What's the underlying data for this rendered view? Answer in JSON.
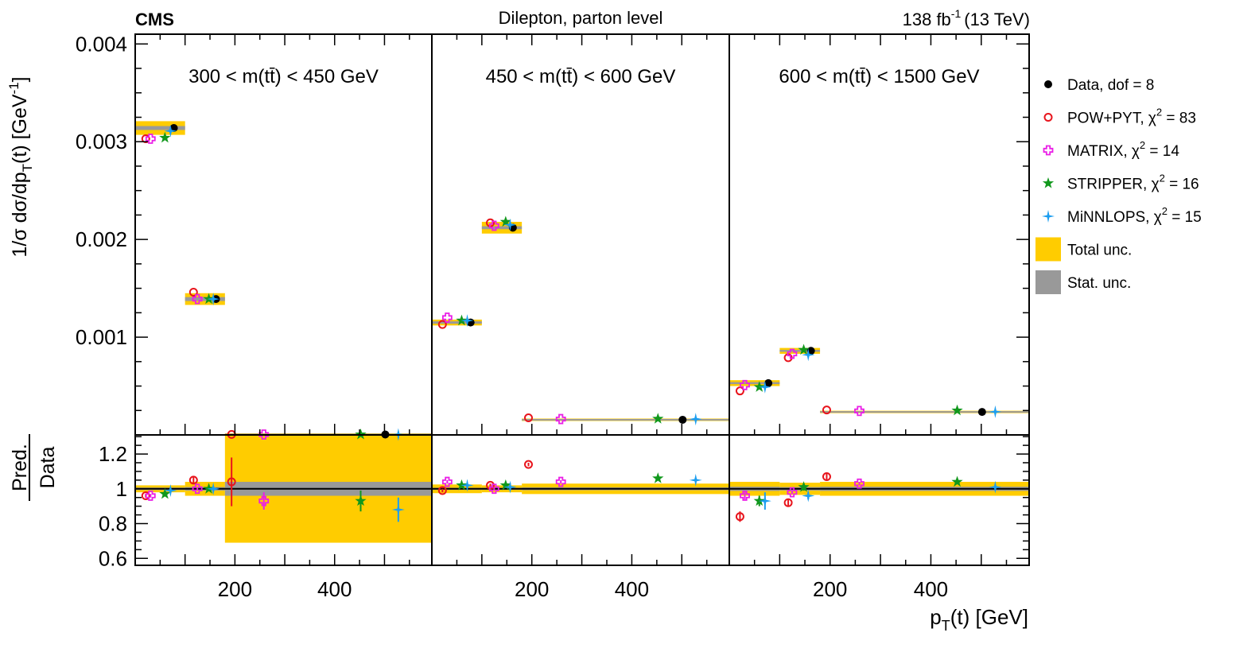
{
  "header": {
    "experiment": "CMS",
    "subtitle": "Dilepton, parton level",
    "lumi_main": "138 fb",
    "lumi_sup": "-1",
    "lumi_energy": "(13 TeV)"
  },
  "y_label": {
    "pre": "1/σ dσ/dp",
    "sub": "T",
    "mid": "(t) [GeV",
    "sup": "-1",
    "post": "]"
  },
  "ratio_label": {
    "num": "Pred.",
    "den": "Data"
  },
  "x_label": {
    "pre": "p",
    "sub": "T",
    "post": "(t) [GeV]"
  },
  "colors": {
    "data": "#000000",
    "powpyt": "#e8141c",
    "matrix": "#ea1fe6",
    "stripper": "#11981c",
    "minnlops": "#1b9ef0",
    "total_unc": "#ffcc00",
    "stat_unc": "#999999"
  },
  "legend": [
    {
      "key": "data",
      "marker": "dot",
      "text": "Data, dof = 8"
    },
    {
      "key": "powpyt",
      "marker": "circle",
      "text": "POW+PYT, χ",
      "sup": "2",
      "tail": " = 83"
    },
    {
      "key": "matrix",
      "marker": "cross",
      "text": "MATRIX, χ",
      "sup": "2",
      "tail": " = 14"
    },
    {
      "key": "stripper",
      "marker": "star",
      "text": "STRIPPER, χ",
      "sup": "2",
      "tail": " = 16"
    },
    {
      "key": "minnlops",
      "marker": "fourstar",
      "text": "MiNNLOPS, χ",
      "sup": "2",
      "tail": " = 15"
    },
    {
      "key": "total_unc",
      "marker": "box",
      "text": "Total unc."
    },
    {
      "key": "stat_unc",
      "marker": "box",
      "text": "Stat. unc."
    }
  ],
  "chart_data": {
    "type": "scatter",
    "x_axis": {
      "range": [
        0,
        595
      ],
      "ticks": [
        200,
        400
      ]
    },
    "y_axis": {
      "range": [
        0,
        0.0041
      ],
      "ticks": [
        "0.004",
        "0.003",
        "0.002",
        "0.001"
      ]
    },
    "ratio_axis": {
      "range": [
        0.56,
        1.31
      ],
      "ticks": [
        "1.2",
        "1",
        "0.8",
        "0.6"
      ]
    },
    "bins": [
      [
        0,
        100
      ],
      [
        100,
        180
      ],
      [
        180,
        595
      ]
    ],
    "panels": [
      {
        "title": "300 < m(tt̄) < 450 GeV",
        "data": [
          0.00314,
          0.00139,
          4.5e-06
        ],
        "total_unc": [
          7e-05,
          6e-05,
          3e-07
        ],
        "stat_unc": [
          2e-05,
          2e-05,
          1.5e-07
        ],
        "pred": {
          "powpyt": [
            0.00303,
            0.00146,
            4.7e-06
          ],
          "matrix": [
            0.00303,
            0.00139,
            4.2e-06
          ],
          "stripper": [
            0.00304,
            0.00139,
            4.2e-06
          ],
          "minnlops": [
            0.00311,
            0.00139,
            4e-06
          ]
        },
        "ratio": {
          "powpyt": [
            0.96,
            1.05,
            1.04
          ],
          "matrix": [
            0.96,
            1.0,
            0.93
          ],
          "stripper": [
            0.97,
            1.0,
            0.93
          ],
          "minnlops": [
            0.99,
            1.0,
            0.88
          ]
        },
        "ratio_err": {
          "powpyt": [
            0.01,
            0.02,
            0.14
          ],
          "matrix": [
            0.01,
            0.01,
            0.05
          ],
          "stripper": [
            0.01,
            0.01,
            0.06
          ],
          "minnlops": [
            0.01,
            0.01,
            0.07
          ]
        },
        "ratio_total": [
          0.02,
          0.04,
          0.31
        ],
        "ratio_stat": [
          0.007,
          0.01,
          0.04
        ]
      },
      {
        "title": "450 < m(tt̄) < 600 GeV",
        "data": [
          0.00115,
          0.00212,
          0.000155
        ],
        "total_unc": [
          3e-05,
          6e-05,
          3e-06
        ],
        "stat_unc": [
          1.2e-05,
          1.5e-05,
          1e-06
        ],
        "pred": {
          "powpyt": [
            0.00113,
            0.00217,
            0.000175
          ],
          "matrix": [
            0.0012,
            0.00214,
            0.000162
          ],
          "stripper": [
            0.00117,
            0.00218,
            0.000165
          ],
          "minnlops": [
            0.00117,
            0.00215,
            0.000162
          ]
        },
        "ratio": {
          "powpyt": [
            0.99,
            1.02,
            1.14
          ],
          "matrix": [
            1.04,
            1.0,
            1.04
          ],
          "stripper": [
            1.02,
            1.02,
            1.06
          ],
          "minnlops": [
            1.02,
            1.01,
            1.05
          ]
        },
        "ratio_err": {
          "powpyt": [
            0.01,
            0.01,
            0.01
          ],
          "matrix": [
            0.01,
            0.01,
            0.01
          ],
          "stripper": [
            0.01,
            0.01,
            0.01
          ],
          "minnlops": [
            0.01,
            0.01,
            0.01
          ]
        },
        "ratio_total": [
          0.025,
          0.02,
          0.03
        ],
        "ratio_stat": [
          0.006,
          0.006,
          0.008
        ]
      },
      {
        "title": "600 < m(tt̄) < 1500 GeV",
        "data": [
          0.00053,
          0.00086,
          0.000235
        ],
        "total_unc": [
          3e-05,
          3e-05,
          8e-06
        ],
        "stat_unc": [
          1e-05,
          1e-05,
          3e-06
        ],
        "pred": {
          "powpyt": [
            0.00045,
            0.00079,
            0.000255
          ],
          "matrix": [
            0.00051,
            0.00083,
            0.000245
          ],
          "stripper": [
            0.00049,
            0.00087,
            0.00025
          ],
          "minnlops": [
            0.00049,
            0.00082,
            0.000237
          ]
        },
        "ratio": {
          "powpyt": [
            0.84,
            0.92,
            1.07
          ],
          "matrix": [
            0.96,
            0.98,
            1.03
          ],
          "stripper": [
            0.93,
            1.01,
            1.04
          ],
          "minnlops": [
            0.93,
            0.96,
            1.01
          ]
        },
        "ratio_err": {
          "powpyt": [
            0.03,
            0.02,
            0.02
          ],
          "matrix": [
            0.02,
            0.01,
            0.01
          ],
          "stripper": [
            0.03,
            0.02,
            0.01
          ],
          "minnlops": [
            0.05,
            0.02,
            0.01
          ]
        },
        "ratio_total": [
          0.04,
          0.035,
          0.04
        ],
        "ratio_stat": [
          0.012,
          0.01,
          0.012
        ]
      }
    ]
  }
}
